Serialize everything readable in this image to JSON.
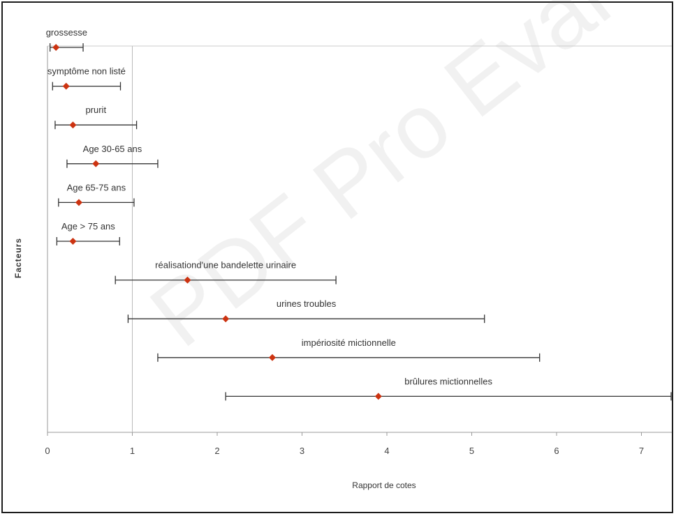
{
  "chart_data": {
    "type": "forest",
    "title": "",
    "xlabel": "Rapport de cotes",
    "ylabel": "Facteurs",
    "xlim": [
      0,
      7.4
    ],
    "xticks": [
      0,
      1,
      2,
      3,
      4,
      5,
      6,
      7
    ],
    "reference_line": 1,
    "grid": false,
    "factors": [
      {
        "label": "grossesse",
        "or": 0.1,
        "ci_low": 0.03,
        "ci_high": 0.42
      },
      {
        "label": "symptôme non listé",
        "or": 0.22,
        "ci_low": 0.06,
        "ci_high": 0.86
      },
      {
        "label": "prurit",
        "or": 0.3,
        "ci_low": 0.09,
        "ci_high": 1.05
      },
      {
        "label": "Age 30-65 ans",
        "or": 0.57,
        "ci_low": 0.23,
        "ci_high": 1.3
      },
      {
        "label": "Age 65-75 ans",
        "or": 0.37,
        "ci_low": 0.13,
        "ci_high": 1.02
      },
      {
        "label": "Age > 75 ans",
        "or": 0.3,
        "ci_low": 0.11,
        "ci_high": 0.85
      },
      {
        "label": "réalisationd'une bandelette urinaire",
        "or": 1.65,
        "ci_low": 0.8,
        "ci_high": 3.4
      },
      {
        "label": "urines troubles",
        "or": 2.1,
        "ci_low": 0.95,
        "ci_high": 5.15
      },
      {
        "label": "impériosité mictionnelle",
        "or": 2.65,
        "ci_low": 1.3,
        "ci_high": 5.8
      },
      {
        "label": "brûlures mictionnelles",
        "or": 3.9,
        "ci_low": 2.1,
        "ci_high": 7.35
      }
    ],
    "colors": {
      "marker": "#cc3311",
      "line": "#333333",
      "axis": "#999999"
    }
  },
  "watermark": "PDF Pro Eval"
}
